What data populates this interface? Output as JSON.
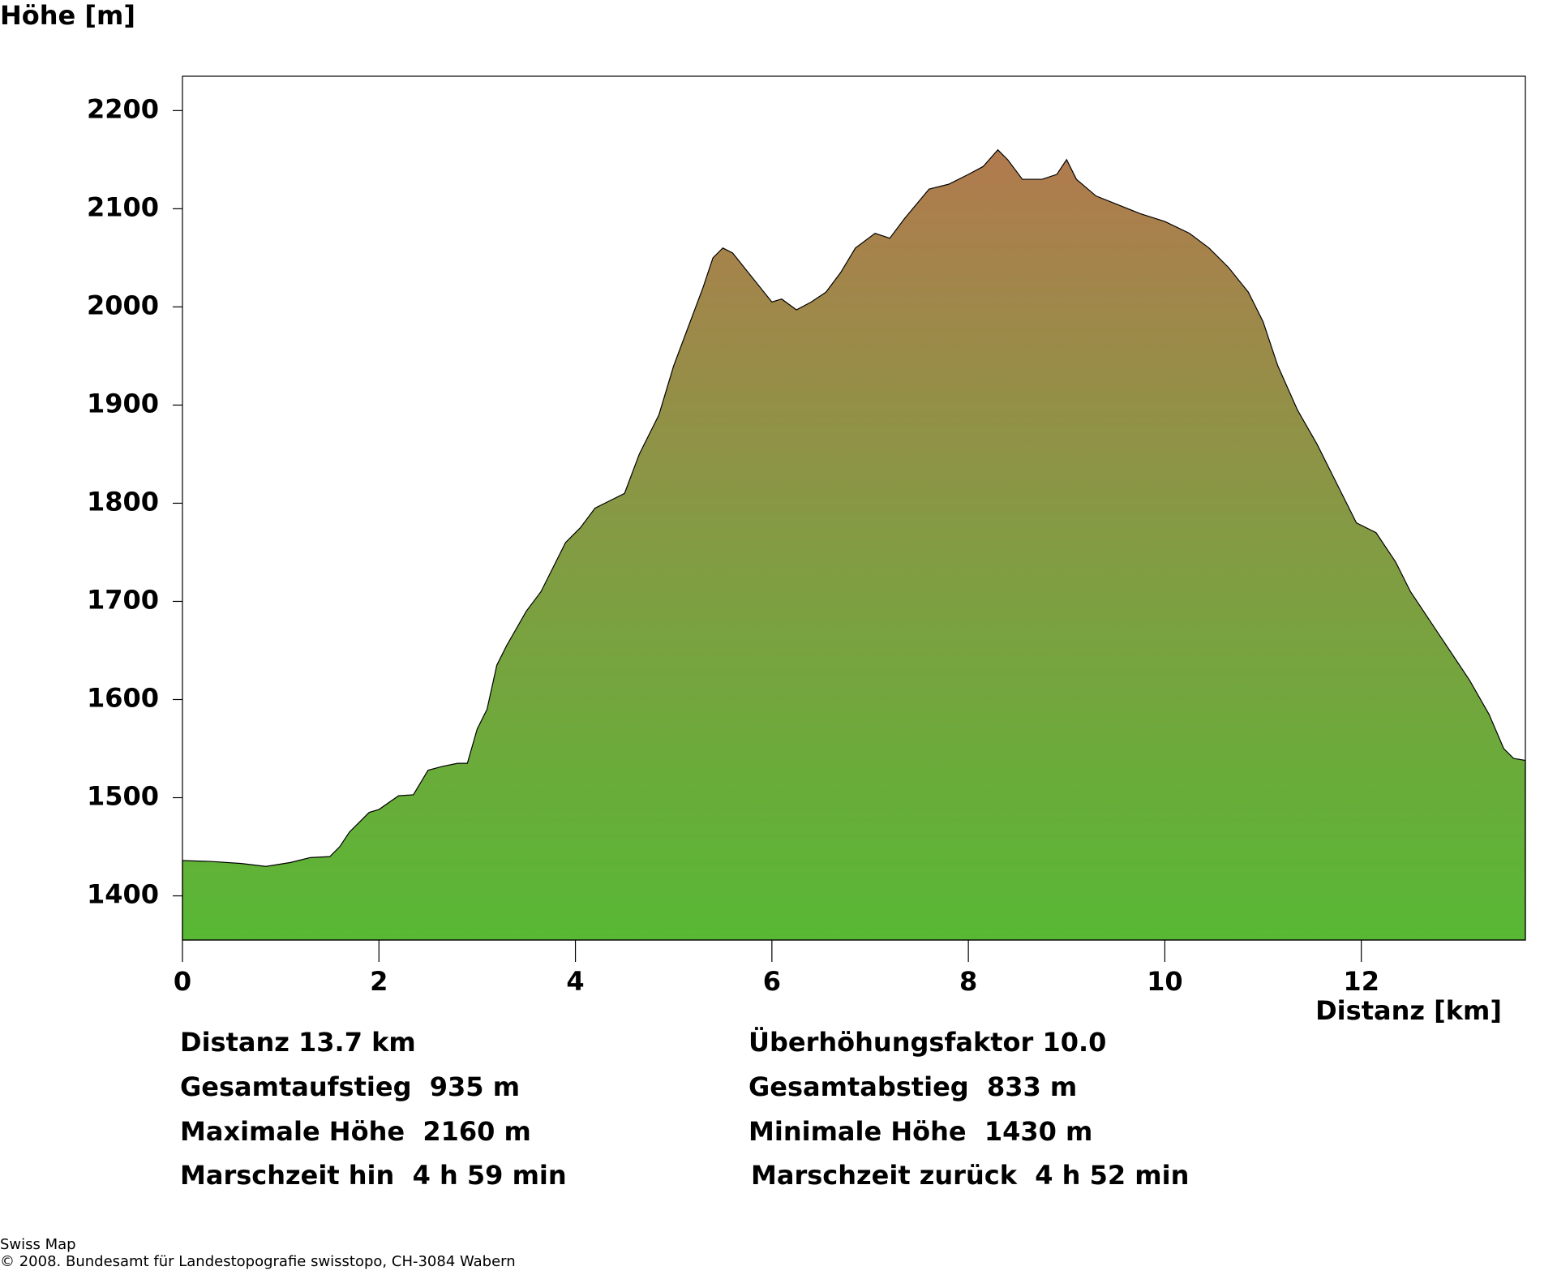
{
  "chart_data": {
    "type": "area",
    "y_label": "Höhe [m]",
    "x_label": "Distanz [km]",
    "x": [
      0,
      0.3,
      0.6,
      0.85,
      1.1,
      1.3,
      1.5,
      1.6,
      1.7,
      1.8,
      1.9,
      2.0,
      2.2,
      2.35,
      2.5,
      2.65,
      2.8,
      2.9,
      3.0,
      3.1,
      3.2,
      3.3,
      3.5,
      3.65,
      3.75,
      3.9,
      4.05,
      4.2,
      4.4,
      4.5,
      4.65,
      4.85,
      5.0,
      5.15,
      5.3,
      5.4,
      5.5,
      5.6,
      5.8,
      6.0,
      6.1,
      6.25,
      6.4,
      6.55,
      6.7,
      6.85,
      7.05,
      7.2,
      7.35,
      7.6,
      7.8,
      8.0,
      8.15,
      8.3,
      8.4,
      8.55,
      8.75,
      8.9,
      9.0,
      9.1,
      9.3,
      9.5,
      9.75,
      10.0,
      10.25,
      10.45,
      10.65,
      10.85,
      11.0,
      11.15,
      11.35,
      11.55,
      11.75,
      11.95,
      12.15,
      12.35,
      12.5,
      12.7,
      12.9,
      13.1,
      13.3,
      13.45,
      13.55,
      13.67
    ],
    "y": [
      1436,
      1435,
      1433,
      1430,
      1434,
      1439,
      1440,
      1450,
      1465,
      1475,
      1485,
      1488,
      1502,
      1503,
      1528,
      1532,
      1535,
      1535,
      1570,
      1590,
      1635,
      1655,
      1690,
      1710,
      1730,
      1760,
      1775,
      1795,
      1805,
      1810,
      1850,
      1890,
      1940,
      1980,
      2020,
      2050,
      2060,
      2055,
      2030,
      2005,
      2008,
      1997,
      2005,
      2015,
      2035,
      2060,
      2075,
      2070,
      2090,
      2120,
      2125,
      2135,
      2143,
      2160,
      2150,
      2130,
      2130,
      2135,
      2150,
      2130,
      2113,
      2105,
      2095,
      2087,
      2075,
      2060,
      2040,
      2015,
      1985,
      1940,
      1895,
      1860,
      1820,
      1780,
      1770,
      1740,
      1710,
      1680,
      1650,
      1620,
      1585,
      1550,
      1540,
      1538
    ],
    "xlim": [
      0,
      13.67
    ],
    "ylim": [
      1355,
      2235
    ],
    "xticks": [
      0,
      2,
      4,
      6,
      8,
      10,
      12
    ],
    "yticks": [
      1400,
      1500,
      1600,
      1700,
      1800,
      1900,
      2000,
      2100,
      2200
    ],
    "stats": [
      [
        "Distanz 13.7 km",
        "Überhöhungsfaktor 10.0"
      ],
      [
        "Gesamtaufstieg  935 m",
        "Gesamtabstieg  833 m"
      ],
      [
        "Maximale Höhe  2160 m",
        "Minimale Höhe  1430 m"
      ],
      [
        "Marschzeit hin  4 h 59 min",
        "Marschzeit zurück  4 h 52 min"
      ]
    ],
    "footer": [
      "Swiss Map",
      "© 2008. Bundesamt für Landestopografie swisstopo, CH-3084 Wabern"
    ]
  }
}
